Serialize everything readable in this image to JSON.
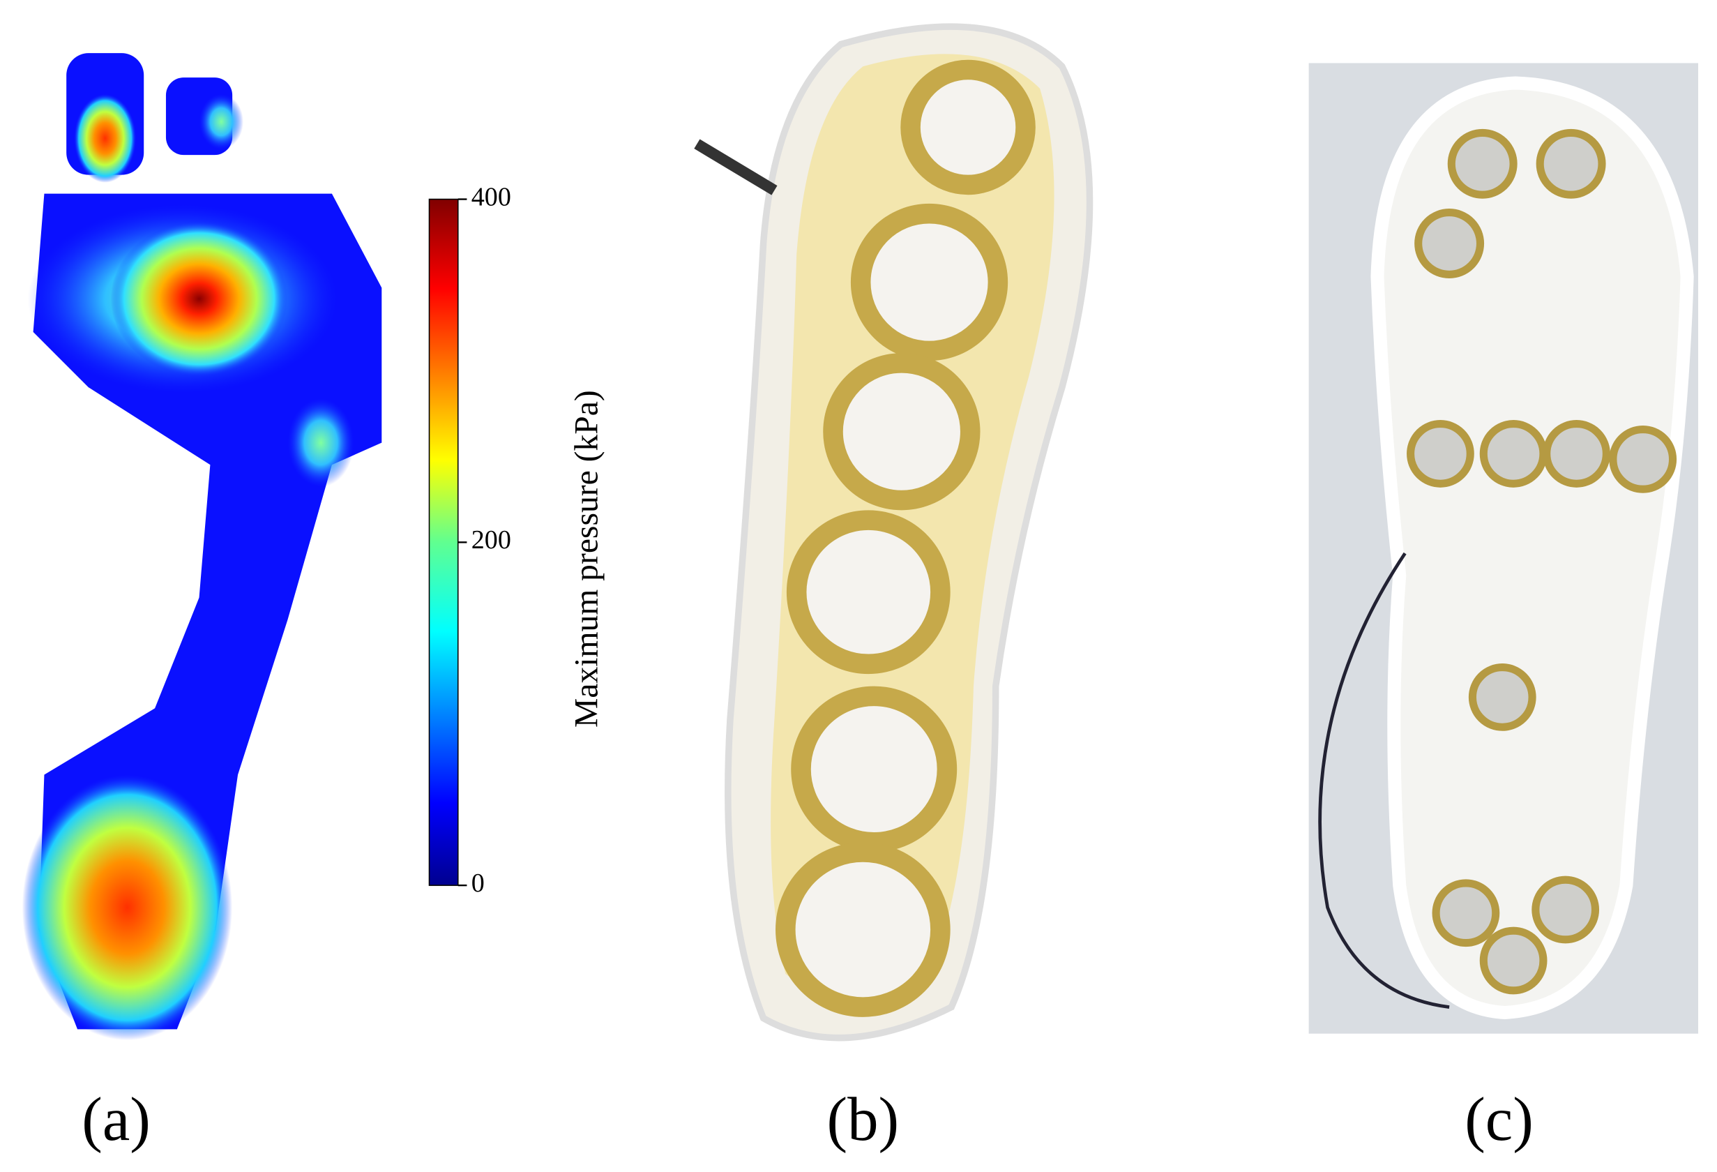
{
  "colorbar": {
    "label": "Maximum pressure (kPa)",
    "lim": [
      0,
      400
    ],
    "ticks": [
      0,
      200,
      400
    ]
  },
  "panels": [
    {
      "label": "(a)"
    },
    {
      "label": "(b)"
    },
    {
      "label": "(c)"
    }
  ]
}
